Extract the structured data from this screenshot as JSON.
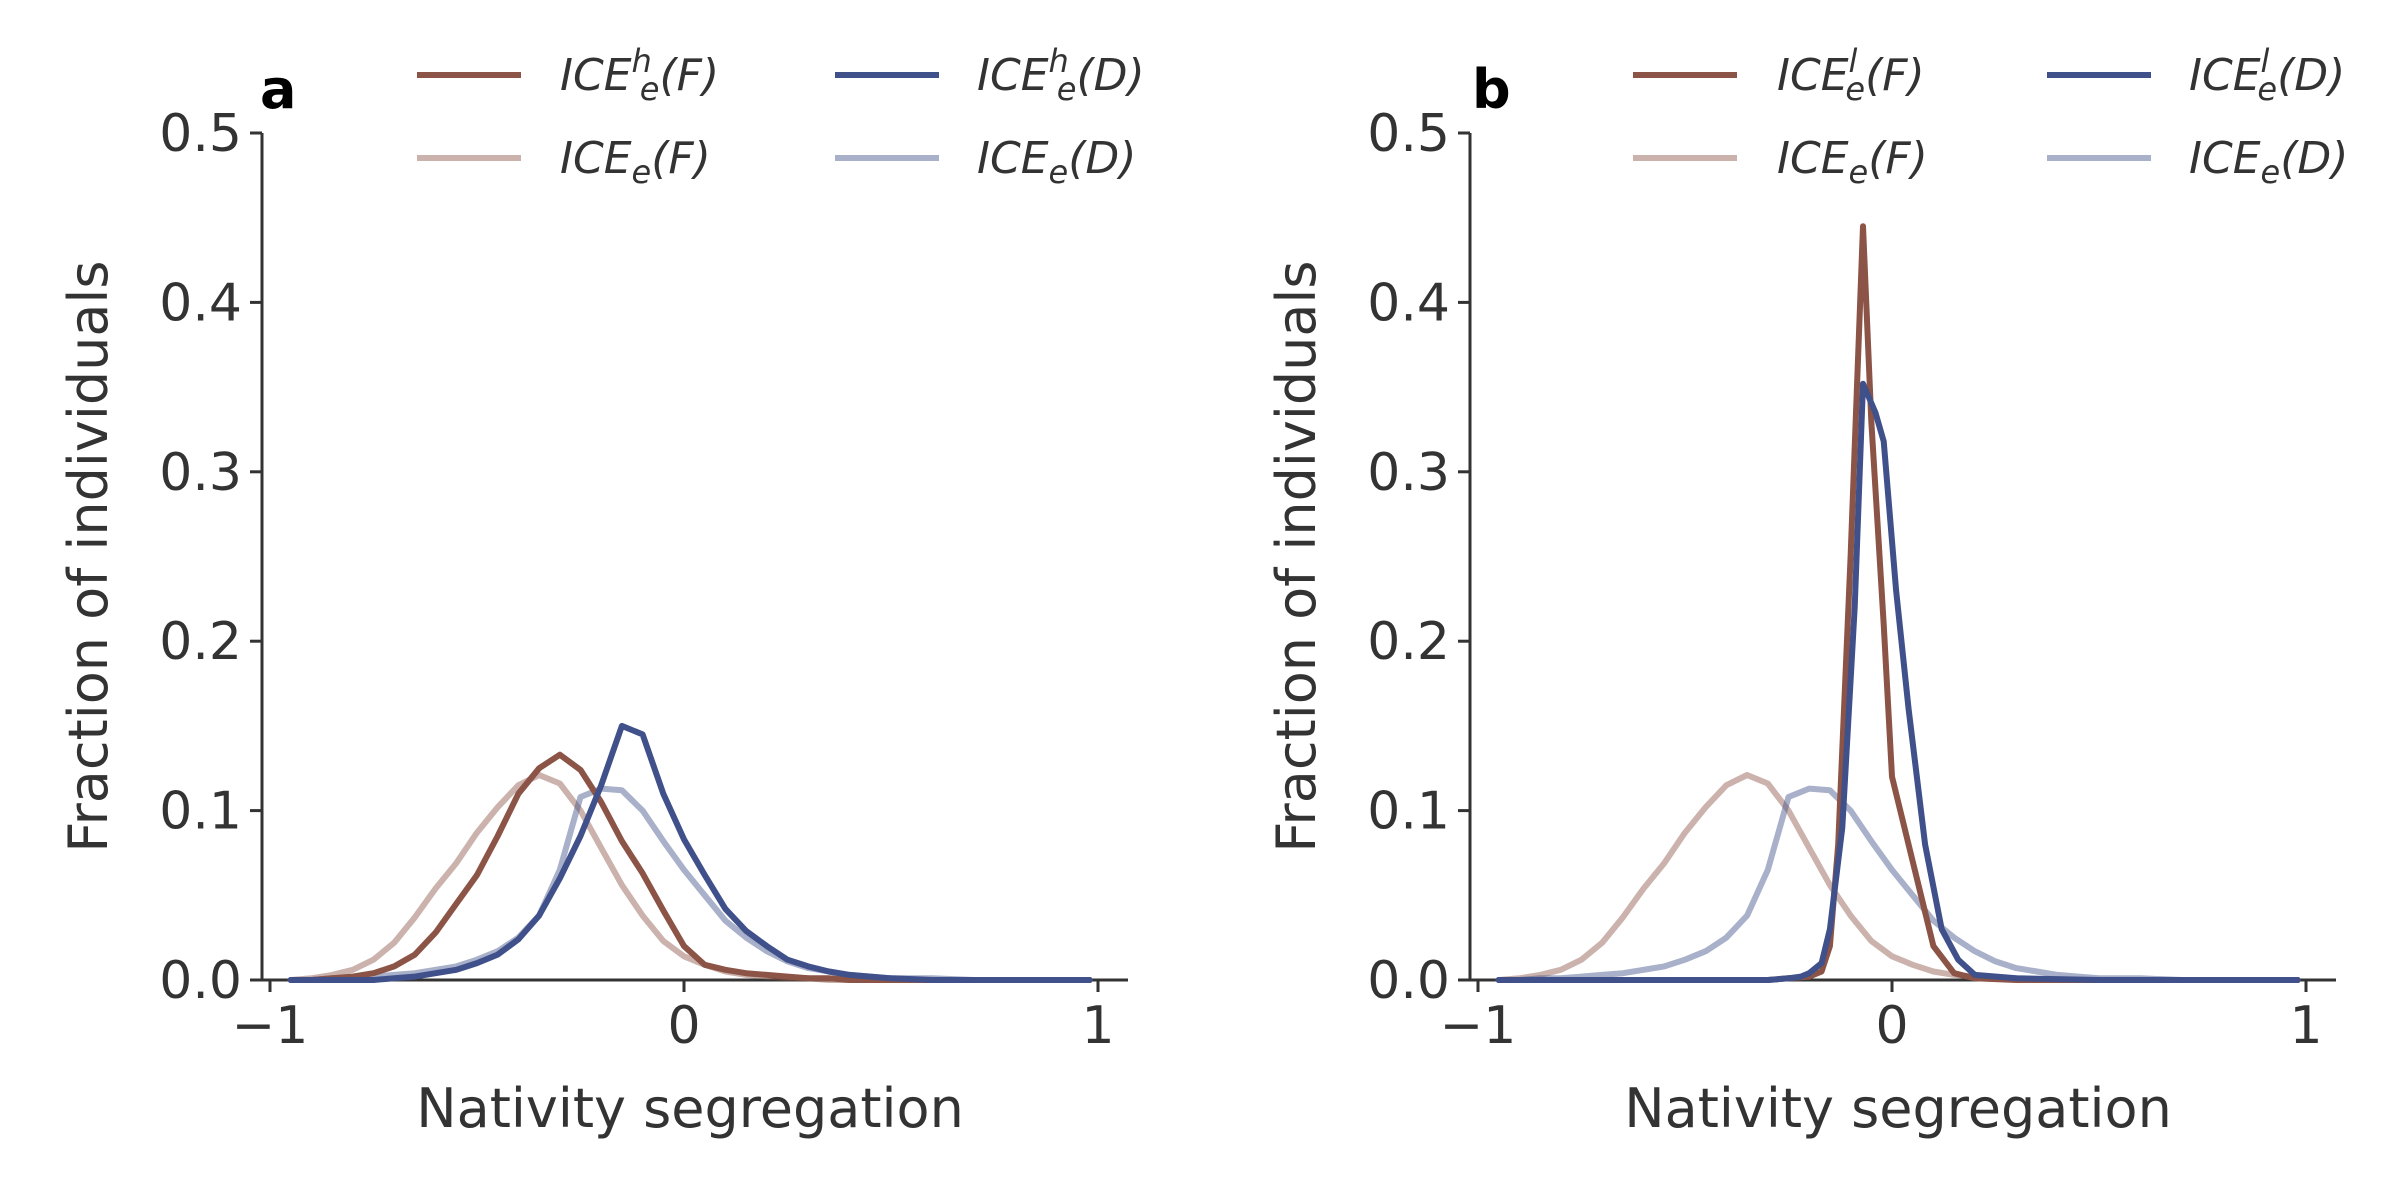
{
  "chart_data": [
    {
      "type": "line",
      "panel_label": "a",
      "xlabel": "Nativity segregation",
      "ylabel": "Fraction of individuals",
      "xlim": [
        -1,
        1
      ],
      "ylim": [
        0,
        0.5
      ],
      "xticks": [
        "−1",
        "0",
        "1"
      ],
      "yticks": [
        "0.0",
        "0.1",
        "0.2",
        "0.3",
        "0.4",
        "0.5"
      ],
      "legend": {
        "placement": "top",
        "columns": 2
      },
      "series": [
        {
          "name": "ICE_e^h(F)",
          "base": "ICE",
          "sub": "e",
          "sup": "h",
          "arg": "(F)",
          "color": "#8b5446",
          "opacity": 1,
          "x": [
            -0.95,
            -0.9,
            -0.85,
            -0.8,
            -0.75,
            -0.7,
            -0.65,
            -0.6,
            -0.55,
            -0.5,
            -0.45,
            -0.4,
            -0.35,
            -0.3,
            -0.25,
            -0.2,
            -0.15,
            -0.1,
            -0.05,
            0,
            0.05,
            0.1,
            0.15,
            0.2,
            0.25,
            0.3,
            0.35,
            0.4,
            0.45,
            0.5,
            0.6,
            0.7,
            0.8,
            0.9,
            0.98
          ],
          "y": [
            0,
            0,
            0.001,
            0.002,
            0.004,
            0.008,
            0.015,
            0.028,
            0.045,
            0.062,
            0.085,
            0.11,
            0.125,
            0.133,
            0.124,
            0.105,
            0.082,
            0.063,
            0.041,
            0.02,
            0.009,
            0.006,
            0.004,
            0.003,
            0.002,
            0.001,
            0.001,
            0,
            0,
            0,
            0,
            0,
            0,
            0,
            0
          ]
        },
        {
          "name": "ICE_e(F)",
          "base": "ICE",
          "sub": "e",
          "sup": "",
          "arg": "(F)",
          "color": "#8b5446",
          "opacity": 0.45,
          "x": [
            -0.95,
            -0.9,
            -0.85,
            -0.8,
            -0.75,
            -0.7,
            -0.65,
            -0.6,
            -0.55,
            -0.5,
            -0.45,
            -0.4,
            -0.35,
            -0.3,
            -0.25,
            -0.2,
            -0.15,
            -0.1,
            -0.05,
            0,
            0.05,
            0.1,
            0.15,
            0.2,
            0.25,
            0.3,
            0.35,
            0.4,
            0.45,
            0.5,
            0.6,
            0.7,
            0.8,
            0.9,
            0.98
          ],
          "y": [
            0,
            0.001,
            0.003,
            0.006,
            0.012,
            0.022,
            0.037,
            0.054,
            0.069,
            0.087,
            0.102,
            0.115,
            0.121,
            0.116,
            0.1,
            0.078,
            0.056,
            0.038,
            0.023,
            0.014,
            0.009,
            0.005,
            0.003,
            0.002,
            0.001,
            0.001,
            0,
            0,
            0,
            0,
            0,
            0,
            0,
            0,
            0
          ]
        },
        {
          "name": "ICE_e^h(D)",
          "base": "ICE",
          "sub": "e",
          "sup": "h",
          "arg": "(D)",
          "color": "#3f508a",
          "opacity": 1,
          "x": [
            -0.95,
            -0.9,
            -0.85,
            -0.8,
            -0.75,
            -0.7,
            -0.65,
            -0.6,
            -0.55,
            -0.5,
            -0.45,
            -0.4,
            -0.35,
            -0.3,
            -0.25,
            -0.2,
            -0.15,
            -0.1,
            -0.05,
            0,
            0.05,
            0.1,
            0.15,
            0.2,
            0.25,
            0.3,
            0.35,
            0.4,
            0.45,
            0.5,
            0.6,
            0.7,
            0.8,
            0.9,
            0.98
          ],
          "y": [
            0,
            0,
            0,
            0,
            0,
            0.001,
            0.002,
            0.004,
            0.006,
            0.01,
            0.015,
            0.024,
            0.038,
            0.06,
            0.085,
            0.115,
            0.15,
            0.145,
            0.11,
            0.083,
            0.062,
            0.042,
            0.029,
            0.02,
            0.012,
            0.008,
            0.005,
            0.003,
            0.002,
            0.001,
            0,
            0,
            0,
            0,
            0
          ]
        },
        {
          "name": "ICE_e(D)",
          "base": "ICE",
          "sub": "e",
          "sup": "",
          "arg": "(D)",
          "color": "#3f508a",
          "opacity": 0.45,
          "x": [
            -0.95,
            -0.9,
            -0.85,
            -0.8,
            -0.75,
            -0.7,
            -0.65,
            -0.6,
            -0.55,
            -0.5,
            -0.45,
            -0.4,
            -0.35,
            -0.3,
            -0.25,
            -0.2,
            -0.15,
            -0.1,
            -0.05,
            0,
            0.05,
            0.1,
            0.15,
            0.2,
            0.25,
            0.3,
            0.35,
            0.4,
            0.45,
            0.5,
            0.6,
            0.7,
            0.8,
            0.9,
            0.98
          ],
          "y": [
            0,
            0,
            0.001,
            0.001,
            0.002,
            0.003,
            0.004,
            0.006,
            0.008,
            0.012,
            0.017,
            0.025,
            0.038,
            0.065,
            0.108,
            0.113,
            0.112,
            0.1,
            0.082,
            0.065,
            0.05,
            0.035,
            0.025,
            0.017,
            0.011,
            0.007,
            0.005,
            0.003,
            0.002,
            0.001,
            0.001,
            0,
            0,
            0,
            0
          ]
        }
      ]
    },
    {
      "type": "line",
      "panel_label": "b",
      "xlabel": "Nativity segregation",
      "ylabel": "Fraction of individuals",
      "xlim": [
        -1,
        1
      ],
      "ylim": [
        0,
        0.5
      ],
      "xticks": [
        "−1",
        "0",
        "1"
      ],
      "yticks": [
        "0.0",
        "0.1",
        "0.2",
        "0.3",
        "0.4",
        "0.5"
      ],
      "legend": {
        "placement": "top",
        "columns": 2
      },
      "series": [
        {
          "name": "ICE_e^l(F)",
          "base": "ICE",
          "sub": "e",
          "sup": "l",
          "arg": "(F)",
          "color": "#8b5446",
          "opacity": 1,
          "x": [
            -0.95,
            -0.5,
            -0.3,
            -0.25,
            -0.2,
            -0.17,
            -0.15,
            -0.13,
            -0.1,
            -0.07,
            -0.05,
            -0.02,
            0,
            0.05,
            0.1,
            0.15,
            0.2,
            0.3,
            0.5,
            0.98
          ],
          "y": [
            0,
            0,
            0,
            0.001,
            0.002,
            0.005,
            0.02,
            0.08,
            0.25,
            0.445,
            0.33,
            0.21,
            0.12,
            0.07,
            0.02,
            0.004,
            0.001,
            0,
            0,
            0
          ]
        },
        {
          "name": "ICE_e(F)",
          "base": "ICE",
          "sub": "e",
          "sup": "",
          "arg": "(F)",
          "color": "#8b5446",
          "opacity": 0.45,
          "x": [
            -0.95,
            -0.9,
            -0.85,
            -0.8,
            -0.75,
            -0.7,
            -0.65,
            -0.6,
            -0.55,
            -0.5,
            -0.45,
            -0.4,
            -0.35,
            -0.3,
            -0.25,
            -0.2,
            -0.15,
            -0.1,
            -0.05,
            0,
            0.05,
            0.1,
            0.15,
            0.2,
            0.25,
            0.3,
            0.35,
            0.4,
            0.45,
            0.5,
            0.6,
            0.7,
            0.8,
            0.9,
            0.98
          ],
          "y": [
            0,
            0.001,
            0.003,
            0.006,
            0.012,
            0.022,
            0.037,
            0.054,
            0.069,
            0.087,
            0.102,
            0.115,
            0.121,
            0.116,
            0.1,
            0.078,
            0.056,
            0.038,
            0.023,
            0.014,
            0.009,
            0.005,
            0.003,
            0.002,
            0.001,
            0.001,
            0,
            0,
            0,
            0,
            0,
            0,
            0,
            0,
            0
          ]
        },
        {
          "name": "ICE_e^l(D)",
          "base": "ICE",
          "sub": "e",
          "sup": "l",
          "arg": "(D)",
          "color": "#3f508a",
          "opacity": 1,
          "x": [
            -0.95,
            -0.5,
            -0.3,
            -0.25,
            -0.22,
            -0.2,
            -0.17,
            -0.15,
            -0.12,
            -0.09,
            -0.07,
            -0.04,
            -0.02,
            0.01,
            0.04,
            0.08,
            0.12,
            0.16,
            0.2,
            0.3,
            0.5,
            0.98
          ],
          "y": [
            0,
            0,
            0,
            0.001,
            0.002,
            0.004,
            0.01,
            0.03,
            0.09,
            0.22,
            0.352,
            0.335,
            0.318,
            0.23,
            0.16,
            0.08,
            0.03,
            0.012,
            0.003,
            0.001,
            0,
            0
          ]
        },
        {
          "name": "ICE_e(D)",
          "base": "ICE",
          "sub": "e",
          "sup": "",
          "arg": "(D)",
          "color": "#3f508a",
          "opacity": 0.45,
          "x": [
            -0.95,
            -0.9,
            -0.85,
            -0.8,
            -0.75,
            -0.7,
            -0.65,
            -0.6,
            -0.55,
            -0.5,
            -0.45,
            -0.4,
            -0.35,
            -0.3,
            -0.25,
            -0.2,
            -0.15,
            -0.1,
            -0.05,
            0,
            0.05,
            0.1,
            0.15,
            0.2,
            0.25,
            0.3,
            0.35,
            0.4,
            0.45,
            0.5,
            0.6,
            0.7,
            0.8,
            0.9,
            0.98
          ],
          "y": [
            0,
            0,
            0.001,
            0.001,
            0.002,
            0.003,
            0.004,
            0.006,
            0.008,
            0.012,
            0.017,
            0.025,
            0.038,
            0.065,
            0.108,
            0.113,
            0.112,
            0.1,
            0.082,
            0.065,
            0.05,
            0.035,
            0.025,
            0.017,
            0.011,
            0.007,
            0.005,
            0.003,
            0.002,
            0.001,
            0.001,
            0,
            0,
            0,
            0
          ]
        }
      ]
    }
  ]
}
